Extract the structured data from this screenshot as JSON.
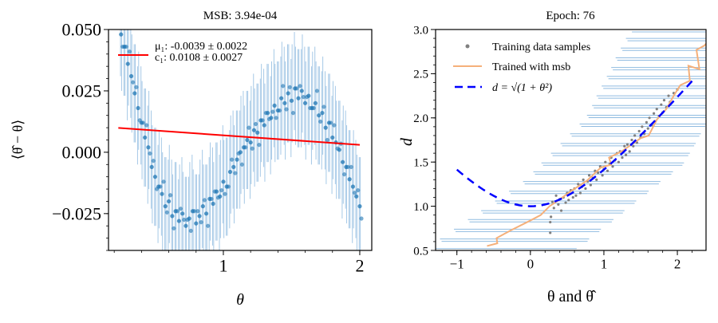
{
  "chart_data": [
    {
      "type": "scatter",
      "title": "MSB: 3.94e-04",
      "xlabel": "θ",
      "ylabel": "⟨θ̂ − θ⟩",
      "xlim": [
        0.158,
        2.088
      ],
      "ylim": [
        -0.04,
        0.05
      ],
      "xticks": [
        {
          "v": 1,
          "label": "1"
        },
        {
          "v": 2,
          "label": "2"
        }
      ],
      "xminor_step": 0.2,
      "yticks": [
        {
          "v": 0.05,
          "label": "0.050"
        },
        {
          "v": 0.025,
          "label": "0.025"
        },
        {
          "v": 0,
          "label": "0.000"
        },
        {
          "v": -0.025,
          "label": "−0.025"
        }
      ],
      "yminor_step": 0.005,
      "grid": false,
      "colors": {
        "points": "#1f77b4",
        "errorbars": "#8fbbe0",
        "fit": "#ff0000"
      },
      "yerr": 0.02,
      "x": [
        0.25,
        0.275,
        0.3,
        0.325,
        0.35,
        0.375,
        0.4,
        0.425,
        0.45,
        0.475,
        0.5,
        0.525,
        0.55,
        0.575,
        0.6,
        0.625,
        0.65,
        0.675,
        0.7,
        0.725,
        0.75,
        0.775,
        0.8,
        0.825,
        0.85,
        0.875,
        0.9,
        0.925,
        0.95,
        0.975,
        1.0,
        1.025,
        1.05,
        1.075,
        1.1,
        1.125,
        1.15,
        1.175,
        1.2,
        1.225,
        1.25,
        1.275,
        1.3,
        1.325,
        1.35,
        1.375,
        1.4,
        1.425,
        1.45,
        1.475,
        1.5,
        1.525,
        1.55,
        1.575,
        1.6,
        1.625,
        1.65,
        1.675,
        1.7,
        1.725,
        1.75,
        1.775,
        1.8,
        1.825,
        1.85,
        1.875,
        1.9,
        1.925,
        1.95,
        1.975,
        2.0
      ],
      "y": [
        0.048,
        0.043,
        0.036,
        0.031,
        0.024,
        0.018,
        0.012,
        0.006,
        0.002,
        -0.006,
        -0.01,
        -0.014,
        -0.017,
        -0.022,
        -0.02,
        -0.026,
        -0.024,
        -0.028,
        -0.025,
        -0.03,
        -0.027,
        -0.024,
        -0.029,
        -0.026,
        -0.022,
        -0.025,
        -0.019,
        -0.021,
        -0.016,
        -0.018,
        -0.012,
        -0.014,
        -0.008,
        -0.006,
        -0.003,
        0.0,
        0.002,
        0.005,
        0.004,
        0.009,
        0.008,
        0.013,
        0.011,
        0.016,
        0.014,
        0.019,
        0.017,
        0.022,
        0.02,
        0.024,
        0.021,
        0.026,
        0.022,
        0.025,
        0.02,
        0.023,
        0.018,
        0.02,
        0.015,
        0.016,
        0.01,
        0.012,
        0.006,
        0.004,
        0.001,
        -0.004,
        -0.006,
        -0.011,
        -0.014,
        -0.018,
        -0.022
      ],
      "fit": {
        "mu1": -0.0039,
        "c1": 0.0108,
        "x_range": [
          0.23,
          2.0
        ]
      },
      "legend": {
        "placement": "upper-left",
        "line1": "μ₁: -0.0039 ± 0.0022",
        "line2": "c₁: 0.0108 ± 0.0027"
      }
    },
    {
      "type": "scatter",
      "title": "Epoch: 76",
      "xlabel": "θ and θ̂",
      "ylabel": "d",
      "xlim": [
        -1.29,
        2.39
      ],
      "ylim": [
        0.5,
        3.0
      ],
      "xticks": [
        {
          "v": -1,
          "label": "−1"
        },
        {
          "v": 0,
          "label": "0"
        },
        {
          "v": 1,
          "label": "1"
        },
        {
          "v": 2,
          "label": "2"
        }
      ],
      "xminor_step": 0.2,
      "yticks": [
        {
          "v": 0.5,
          "label": "0.5"
        },
        {
          "v": 1.0,
          "label": "1.0"
        },
        {
          "v": 1.5,
          "label": "1.5"
        },
        {
          "v": 2.0,
          "label": "2.0"
        },
        {
          "v": 2.5,
          "label": "2.5"
        },
        {
          "v": 3.0,
          "label": "3.0"
        }
      ],
      "yminor_step": 0.1,
      "grid": false,
      "colors": {
        "samples": "#808080",
        "trained": "#f5b07a",
        "truth": "#0000ff",
        "errorbars": "#8fbbe0"
      },
      "legend": {
        "placement": "upper-left",
        "samples": "Training data samples",
        "trained": "Trained with msb",
        "truth": "d = √(1 + θ²)"
      },
      "samples": [
        [
          0.3,
          1.05
        ],
        [
          0.32,
          0.98
        ],
        [
          0.35,
          1.12
        ],
        [
          0.38,
          1.02
        ],
        [
          0.4,
          1.08
        ],
        [
          0.42,
          0.95
        ],
        [
          0.45,
          1.1
        ],
        [
          0.48,
          1.04
        ],
        [
          0.5,
          1.15
        ],
        [
          0.52,
          1.07
        ],
        [
          0.55,
          1.18
        ],
        [
          0.58,
          1.1
        ],
        [
          0.6,
          1.2
        ],
        [
          0.62,
          1.12
        ],
        [
          0.65,
          1.25
        ],
        [
          0.68,
          1.15
        ],
        [
          0.7,
          1.22
        ],
        [
          0.72,
          1.3
        ],
        [
          0.75,
          1.2
        ],
        [
          0.78,
          1.28
        ],
        [
          0.8,
          1.35
        ],
        [
          0.82,
          1.24
        ],
        [
          0.85,
          1.32
        ],
        [
          0.88,
          1.4
        ],
        [
          0.9,
          1.3
        ],
        [
          0.92,
          1.38
        ],
        [
          0.95,
          1.45
        ],
        [
          0.98,
          1.35
        ],
        [
          1.0,
          1.42
        ],
        [
          1.02,
          1.5
        ],
        [
          1.05,
          1.4
        ],
        [
          1.08,
          1.48
        ],
        [
          1.1,
          1.55
        ],
        [
          1.12,
          1.45
        ],
        [
          1.15,
          1.52
        ],
        [
          1.18,
          1.6
        ],
        [
          1.2,
          1.5
        ],
        [
          1.22,
          1.62
        ],
        [
          1.25,
          1.55
        ],
        [
          1.28,
          1.68
        ],
        [
          1.3,
          1.58
        ],
        [
          1.32,
          1.7
        ],
        [
          1.35,
          1.62
        ],
        [
          1.38,
          1.75
        ],
        [
          1.4,
          1.68
        ],
        [
          1.42,
          1.8
        ],
        [
          1.45,
          1.72
        ],
        [
          1.48,
          1.85
        ],
        [
          1.5,
          1.78
        ],
        [
          1.52,
          1.9
        ],
        [
          1.55,
          1.82
        ],
        [
          1.58,
          1.95
        ],
        [
          1.6,
          1.88
        ],
        [
          1.62,
          2.0
        ],
        [
          1.65,
          1.92
        ],
        [
          1.68,
          2.05
        ],
        [
          1.7,
          1.96
        ],
        [
          1.72,
          2.1
        ],
        [
          1.75,
          2.02
        ],
        [
          1.78,
          2.15
        ],
        [
          1.8,
          2.06
        ],
        [
          1.82,
          2.2
        ],
        [
          1.85,
          2.12
        ],
        [
          1.88,
          2.25
        ],
        [
          1.9,
          2.18
        ],
        [
          1.95,
          2.28
        ],
        [
          2.0,
          2.32
        ],
        [
          0.27,
          0.7
        ],
        [
          0.27,
          0.82
        ],
        [
          0.28,
          0.88
        ]
      ],
      "trained": [
        [
          -0.59,
          0.55
        ],
        [
          -0.45,
          0.58
        ],
        [
          -0.46,
          0.64
        ],
        [
          -0.26,
          0.73
        ],
        [
          -0.02,
          0.83
        ],
        [
          0.14,
          0.9
        ],
        [
          0.26,
          1.0
        ],
        [
          0.37,
          1.06
        ],
        [
          0.55,
          1.17
        ],
        [
          0.77,
          1.29
        ],
        [
          0.96,
          1.44
        ],
        [
          1.1,
          1.47
        ],
        [
          1.07,
          1.55
        ],
        [
          1.24,
          1.62
        ],
        [
          1.5,
          1.77
        ],
        [
          1.61,
          1.8
        ],
        [
          1.72,
          1.98
        ],
        [
          1.85,
          2.1
        ],
        [
          1.95,
          2.25
        ],
        [
          2.04,
          2.37
        ],
        [
          2.17,
          2.42
        ],
        [
          2.15,
          2.59
        ],
        [
          2.3,
          2.55
        ],
        [
          2.26,
          2.77
        ],
        [
          2.37,
          2.82
        ],
        [
          2.39,
          2.84
        ]
      ],
      "truth_x_range": [
        -1.0,
        2.2
      ],
      "hbars": [
        [
          0.52,
          -1.42,
          0.63
        ],
        [
          0.63,
          -1.23,
          0.8
        ],
        [
          0.74,
          -1.04,
          0.96
        ],
        [
          0.85,
          -0.85,
          1.13
        ],
        [
          0.95,
          -0.67,
          1.28
        ],
        [
          1.06,
          -0.48,
          1.44
        ],
        [
          1.17,
          -0.29,
          1.61
        ],
        [
          1.28,
          -0.1,
          1.77
        ],
        [
          1.39,
          0.04,
          1.94
        ],
        [
          1.49,
          0.15,
          2.09
        ],
        [
          1.6,
          0.28,
          2.17
        ],
        [
          1.71,
          0.41,
          2.25
        ],
        [
          1.82,
          0.54,
          2.32
        ],
        [
          1.93,
          0.67,
          2.4
        ],
        [
          2.03,
          0.77,
          2.6
        ],
        [
          2.14,
          0.84,
          2.6
        ],
        [
          2.25,
          0.9,
          2.6
        ],
        [
          2.36,
          0.97,
          2.6
        ],
        [
          2.47,
          1.04,
          2.6
        ],
        [
          2.57,
          1.1,
          2.6
        ],
        [
          2.68,
          1.16,
          2.6
        ],
        [
          2.79,
          1.23,
          2.6
        ],
        [
          2.9,
          1.3,
          2.6
        ],
        [
          3.0,
          1.36,
          2.6
        ]
      ]
    }
  ]
}
